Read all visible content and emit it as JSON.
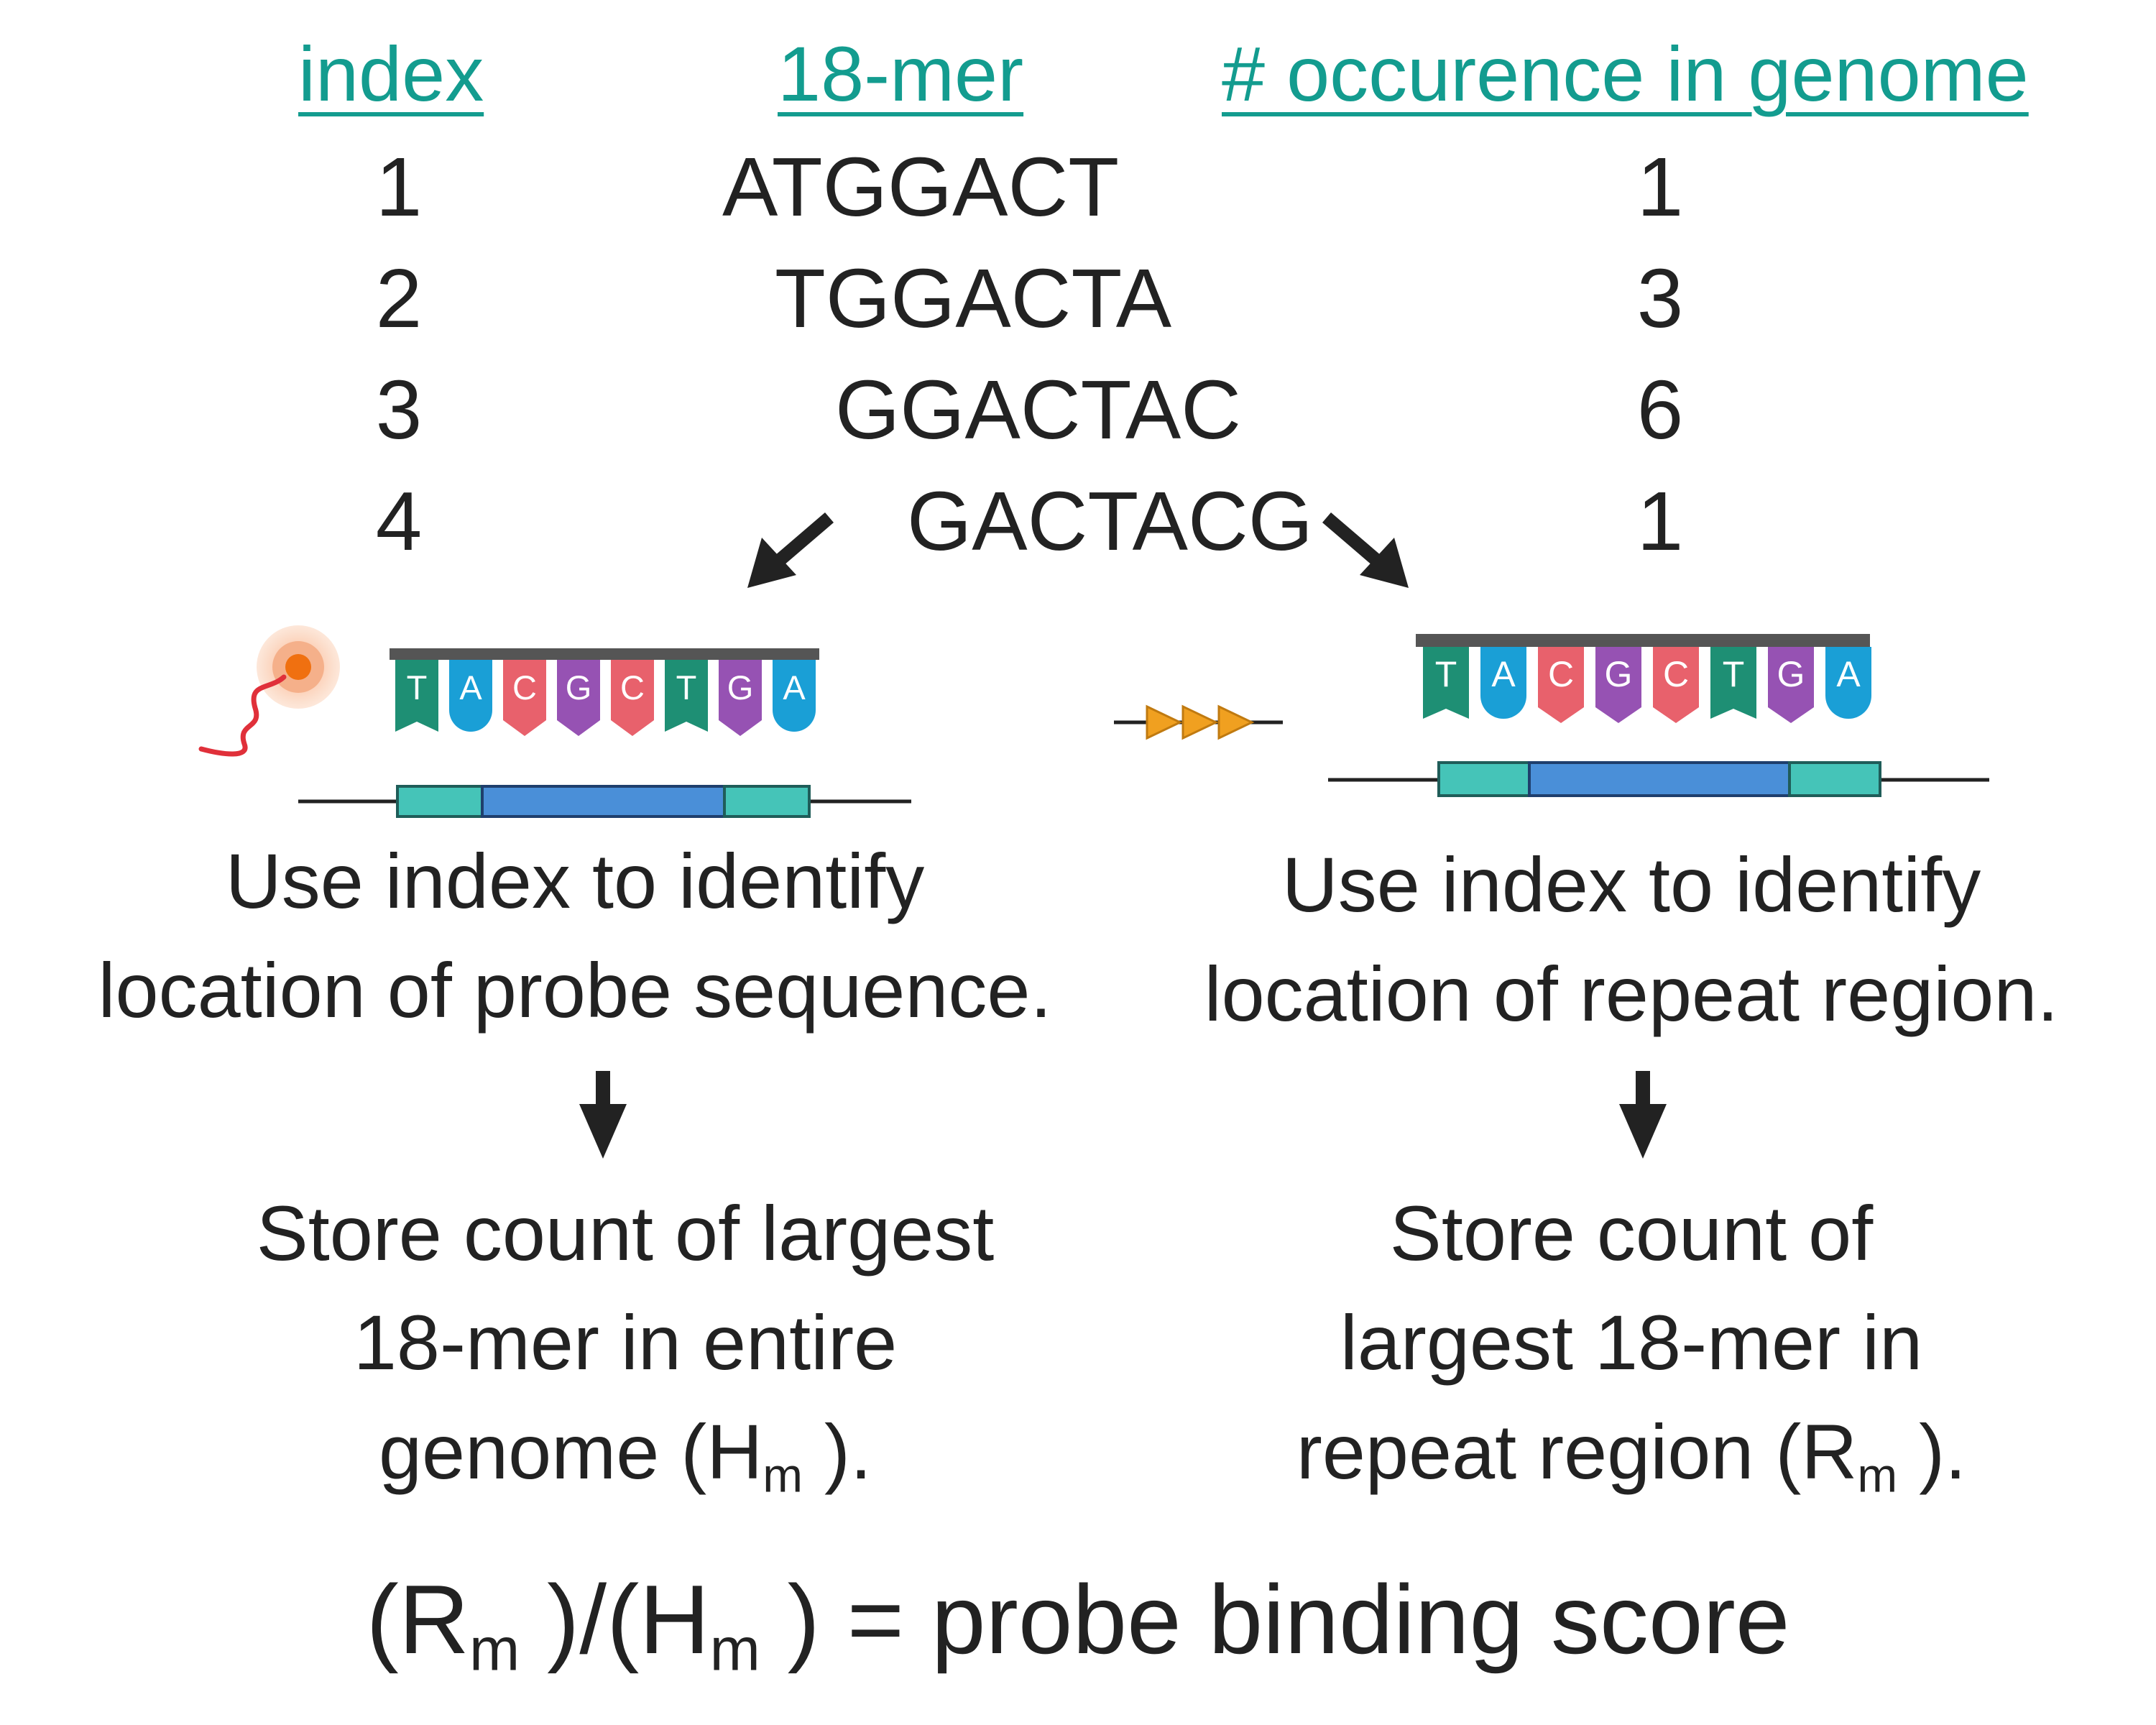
{
  "table": {
    "headers": {
      "index": "index",
      "kmer": "18-mer",
      "occurrence": "# occurence in genome"
    },
    "rows": [
      {
        "index": "1",
        "sequence": "ATGGACT",
        "count": "1"
      },
      {
        "index": "2",
        "sequence": "TGGACTA",
        "count": "3"
      },
      {
        "index": "3",
        "sequence": "GGACTAC",
        "count": "6"
      },
      {
        "index": "4",
        "sequence": "GACTACG",
        "count": "1"
      }
    ]
  },
  "probe_bases": [
    "T",
    "A",
    "C",
    "G",
    "C",
    "T",
    "G",
    "A"
  ],
  "base_colors": {
    "T": "#1e8f74",
    "A": "#1a9fd6",
    "C": "#e8616c",
    "G": "#9652b3"
  },
  "colors": {
    "header": "#139c8f",
    "flank": "#45c4b8",
    "core": "#4a8fd8",
    "probe_bar": "#555555",
    "fluorophore": "#f07010",
    "repeat_arrow": "#f0a020"
  },
  "left": {
    "caption": "Use index to identify\nlocation of probe sequence.",
    "result": "Store count of largest\n18-mer in entire\ngenome (H",
    "result_sub": "m",
    "result_end": " )."
  },
  "right": {
    "caption": "Use index to identify\nlocation of repeat region.",
    "result": "Store count of\nlargest 18-mer in\nrepeat region (R",
    "result_sub": "m",
    "result_end": " )."
  },
  "formula": {
    "open1": "(R",
    "sub1": "m",
    "mid": " )/(H",
    "sub2": "m",
    "close": " ) = probe binding score"
  }
}
